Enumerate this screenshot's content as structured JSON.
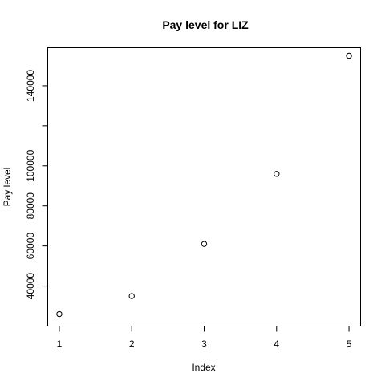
{
  "chart_data": {
    "type": "scatter",
    "title": "Pay level for  LIZ",
    "xlabel": "Index",
    "ylabel": "Pay level",
    "x": [
      1,
      2,
      3,
      4,
      5
    ],
    "y": [
      26000,
      35000,
      61000,
      96000,
      155000
    ],
    "xlim": [
      0.84,
      5.16
    ],
    "ylim": [
      20000,
      159000
    ],
    "x_ticks": [
      1,
      2,
      3,
      4,
      5
    ],
    "x_tick_labels": [
      "1",
      "2",
      "3",
      "4",
      "5"
    ],
    "y_ticks": [
      40000,
      60000,
      80000,
      100000,
      120000,
      140000
    ],
    "y_tick_labels": [
      "40000",
      "60000",
      "80000",
      "100000",
      "",
      "140000"
    ],
    "grid": false,
    "marker": "open-circle",
    "colors": {
      "points": "#000000",
      "axes": "#000000",
      "background": "#ffffff"
    }
  }
}
